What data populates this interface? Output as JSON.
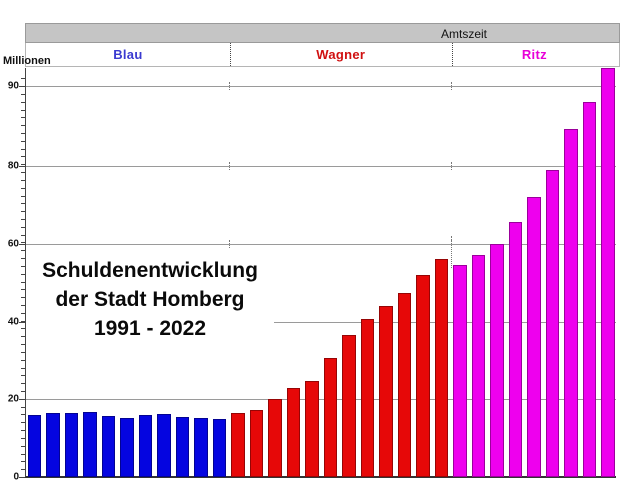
{
  "header": {
    "amtszeit_label": "Amtszeit"
  },
  "axis_unit_label": "Millionen",
  "title": {
    "line1": "Schuldenentwicklung",
    "line2": "der Stadt Homberg",
    "line3": "1991 - 2022"
  },
  "colors": {
    "header_bg": "#c5c5c5",
    "gridline": "#9a9a9a",
    "axis": "#444444",
    "title_text": "#0a0a0a"
  },
  "chart_data": {
    "type": "bar",
    "title": "Schuldenentwicklung der Stadt Homberg 1991 - 2022",
    "ylabel": "Millionen",
    "xlabel": "",
    "x_axis_labels": "none shown (years 1991-2022 implied by title)",
    "yticks": [
      0,
      20,
      40,
      60,
      80,
      90
    ],
    "ylim": [
      0,
      93
    ],
    "grid": "horizontal",
    "legend_position": "top band (Amtszeit)",
    "y_axis_note": "visual spacing of the 80-90 segment is double that of lower 20-unit segments",
    "group_header": "Amtszeit",
    "periods": [
      {
        "label": "Blau",
        "label_color": "#3a3ad0",
        "bar_color": "#0505e0",
        "values": [
          16,
          16.4,
          16.6,
          16.8,
          15.8,
          15.2,
          16,
          16.2,
          15.5,
          15.2,
          15
        ]
      },
      {
        "label": "Wagner",
        "label_color": "#d01010",
        "bar_color": "#e60808",
        "values": [
          16.4,
          17.2,
          20,
          23,
          24.8,
          30.5,
          36.5,
          40.6,
          44,
          47.4,
          52,
          56
        ]
      },
      {
        "label": "Ritz",
        "label_color": "#e800d8",
        "bar_color": "#ee00ee",
        "values": [
          54.5,
          57,
          60,
          65.5,
          72,
          79,
          84.6,
          88,
          92.3
        ]
      }
    ]
  }
}
